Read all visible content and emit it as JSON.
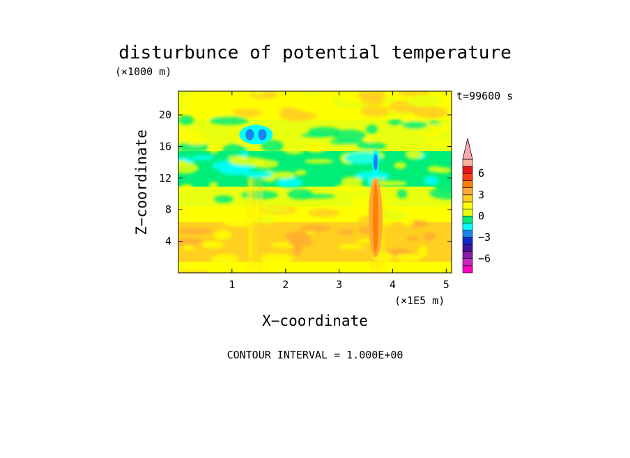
{
  "chart_data": {
    "type": "heatmap",
    "title": "disturbunce of potential temperature",
    "time_label": "t=99600 s",
    "xlabel": "X−coordinate",
    "ylabel": "Z−coordinate",
    "x_unit": "(×1E5 m)",
    "y_unit": "(×1000 m)",
    "footer": "CONTOUR INTERVAL = 1.000E+00",
    "xlim": [
      0,
      5.1
    ],
    "ylim": [
      0,
      23
    ],
    "x_ticks": [
      1,
      2,
      3,
      4,
      5
    ],
    "y_ticks": [
      4,
      8,
      12,
      16,
      20
    ],
    "contour_interval": 1.0,
    "colorbar": {
      "levels": [
        -8,
        -7,
        -6,
        -5,
        -4,
        -3,
        -2,
        -1,
        0,
        1,
        2,
        3,
        4,
        5,
        6,
        7
      ],
      "labels": [
        {
          "text": "6",
          "value": 6
        },
        {
          "text": "3",
          "value": 3
        },
        {
          "text": "0",
          "value": 0
        },
        {
          "text": "−3",
          "value": -3
        },
        {
          "text": "−6",
          "value": -6
        }
      ],
      "colors": [
        "#ff00c0",
        "#cc22bb",
        "#8b18a8",
        "#3c14a0",
        "#0f28d0",
        "#1c82ee",
        "#00ffff",
        "#00ee78",
        "#e8ff10",
        "#ffff00",
        "#ffd020",
        "#ffaa33",
        "#ff8000",
        "#ff3c14",
        "#e81414",
        "#ffb0a0",
        "#ffaab0"
      ],
      "extend": "max"
    },
    "bands": [
      {
        "z_min": 0,
        "z_max": 1.5,
        "value": 0.5
      },
      {
        "z_min": 1.5,
        "z_max": 6.5,
        "value": 1.5
      },
      {
        "z_min": 6.5,
        "z_max": 8.5,
        "value": 0.5
      },
      {
        "z_min": 8.5,
        "z_max": 11.0,
        "value": -0.5
      },
      {
        "z_min": 11.0,
        "z_max": 15.5,
        "value": -1.5
      },
      {
        "z_min": 15.5,
        "z_max": 19.5,
        "value": -0.5
      },
      {
        "z_min": 19.5,
        "z_max": 23,
        "value": 0.5
      }
    ],
    "features": [
      {
        "x": 1.45,
        "z": 17.5,
        "value": -4
      },
      {
        "x": 3.68,
        "z": 14.0,
        "value": -4
      },
      {
        "x": 3.68,
        "z": 7.0,
        "value": 3
      }
    ]
  }
}
